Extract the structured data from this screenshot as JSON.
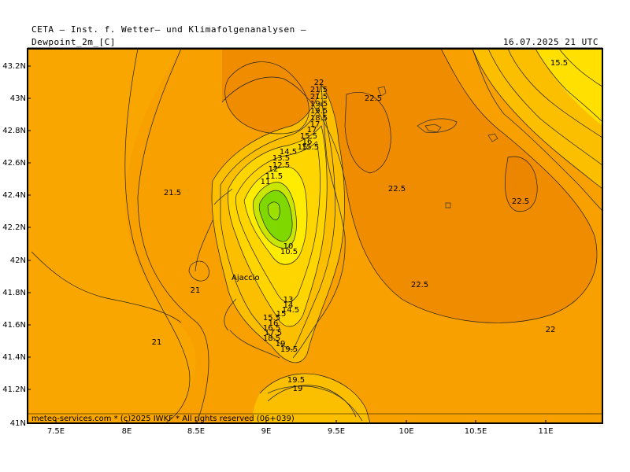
{
  "header": {
    "institute": "CETA  –  Inst. f. Wetter–  und  Klimafolgenanalysen  –",
    "field": "Dewpoint_2m_[C]",
    "valid_time": "16.07.2025  21  UTC"
  },
  "footer": {
    "credit": "meteo-services.com * (c)2025 IWKF * All rights reserved (06+039)"
  },
  "map": {
    "place_label": "Ajaccio",
    "x_ticks": [
      "7.5E",
      "8E",
      "8.5E",
      "9E",
      "9.5E",
      "10E",
      "10.5E",
      "11E"
    ],
    "y_ticks": [
      "43.2N",
      "43N",
      "42.8N",
      "42.6N",
      "42.4N",
      "42.2N",
      "42N",
      "41.8N",
      "41.6N",
      "41.4N",
      "41.2N",
      "41N"
    ],
    "contour_labels": [
      "22",
      "21.5",
      "21.5",
      "19.5",
      "19.5",
      "18.5",
      "17",
      "17",
      "15.5",
      "16",
      "15.5",
      "15",
      "14.5",
      "13.5",
      "12.5",
      "12",
      "11.5",
      "11",
      "10",
      "10.5",
      "13",
      "14",
      "14.5",
      "15",
      "15.5",
      "16",
      "16.5",
      "17.5",
      "18.5",
      "19",
      "19.5",
      "19.5",
      "19",
      "22.5",
      "22.5",
      "22.5",
      "22.5",
      "22",
      "21.5",
      "21",
      "21",
      "15.5"
    ],
    "colors": {
      "orange_dark": "#f08c00",
      "orange": "#f7a000",
      "yellow_orange": "#fbbf00",
      "yellow": "#ffe000",
      "lime": "#c8e600",
      "green": "#7fd900"
    }
  }
}
